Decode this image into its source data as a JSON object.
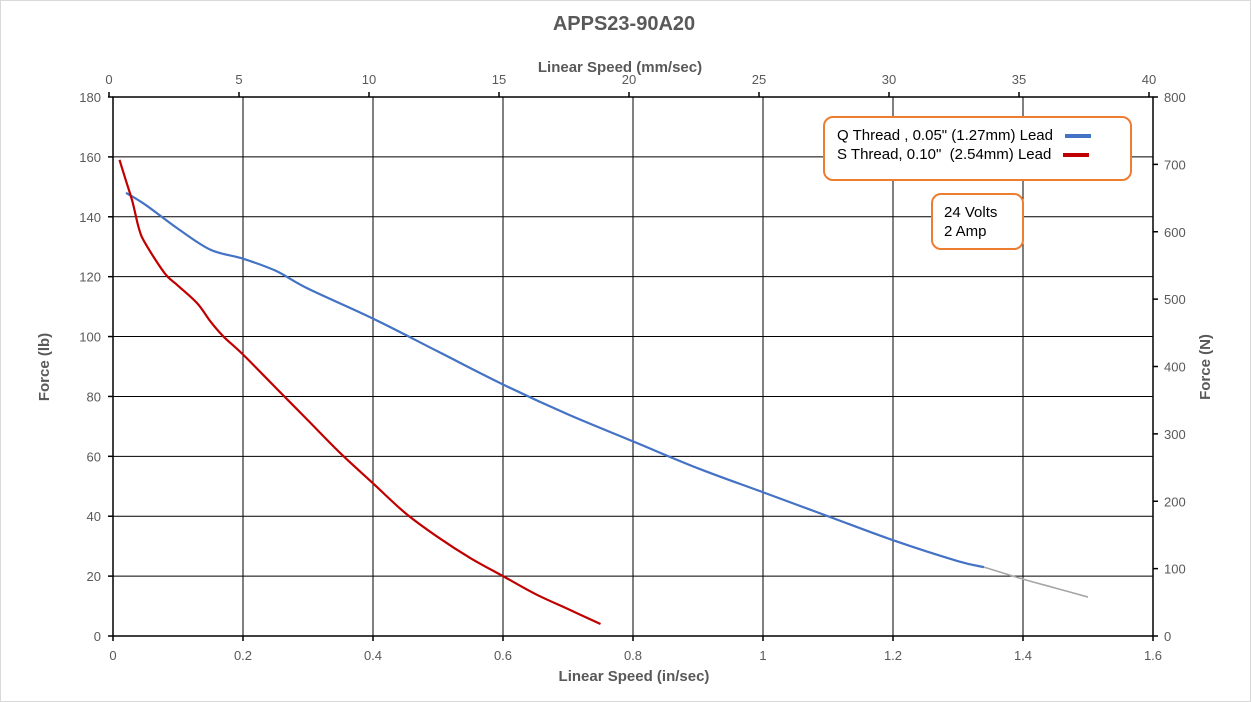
{
  "chart_data": {
    "type": "line",
    "title": "APPS23-90A20",
    "xlabel": "Linear Speed (in/sec)",
    "ylabel": "Force (lb)",
    "x2label": "Linear Speed (mm/sec)",
    "y2label": "Force (N)",
    "xlim": [
      0,
      1.6
    ],
    "ylim": [
      0,
      180
    ],
    "x2lim": [
      0,
      40
    ],
    "y2lim": [
      0,
      800
    ],
    "x_ticks": [
      "0",
      "0.2",
      "0.4",
      "0.6",
      "0.8",
      "1",
      "1.2",
      "1.4",
      "1.6"
    ],
    "y_ticks": [
      "0",
      "20",
      "40",
      "60",
      "80",
      "100",
      "120",
      "140",
      "160",
      "180"
    ],
    "x2_ticks": [
      "0",
      "5",
      "10",
      "15",
      "20",
      "25",
      "30",
      "35",
      "40"
    ],
    "y2_ticks": [
      "0",
      "100",
      "200",
      "300",
      "400",
      "500",
      "600",
      "700",
      "800"
    ],
    "grid": true,
    "legend_position": "top-right",
    "series": [
      {
        "name": "Q Thread , 0.05\" (1.27mm) Lead",
        "color": "#4472C4",
        "x": [
          0.02,
          0.05,
          0.1,
          0.15,
          0.2,
          0.25,
          0.3,
          0.4,
          0.5,
          0.6,
          0.7,
          0.8,
          0.9,
          1.0,
          1.1,
          1.2,
          1.3,
          1.34
        ],
        "y": [
          148,
          144,
          136,
          129,
          126,
          122,
          116,
          106,
          95,
          84,
          74,
          65,
          56,
          48,
          40,
          32,
          25,
          23
        ]
      },
      {
        "name": "S Thread, 0.10\"  (2.54mm) Lead",
        "color": "#C00000",
        "x": [
          0.01,
          0.02,
          0.03,
          0.04,
          0.05,
          0.08,
          0.1,
          0.13,
          0.15,
          0.17,
          0.2,
          0.25,
          0.3,
          0.35,
          0.4,
          0.45,
          0.5,
          0.55,
          0.6,
          0.65,
          0.7,
          0.75
        ],
        "y": [
          159,
          152,
          145,
          136,
          131,
          121,
          117,
          111,
          105,
          100,
          94,
          83,
          72,
          61,
          51,
          41,
          33,
          26,
          20,
          14,
          9,
          4
        ]
      },
      {
        "name": "",
        "color": "#A6A6A6",
        "x": [
          1.34,
          1.4,
          1.45,
          1.5
        ],
        "y": [
          23,
          19,
          16,
          13
        ]
      }
    ],
    "annotations": [
      "24 Volts",
      "2 Amp"
    ]
  }
}
